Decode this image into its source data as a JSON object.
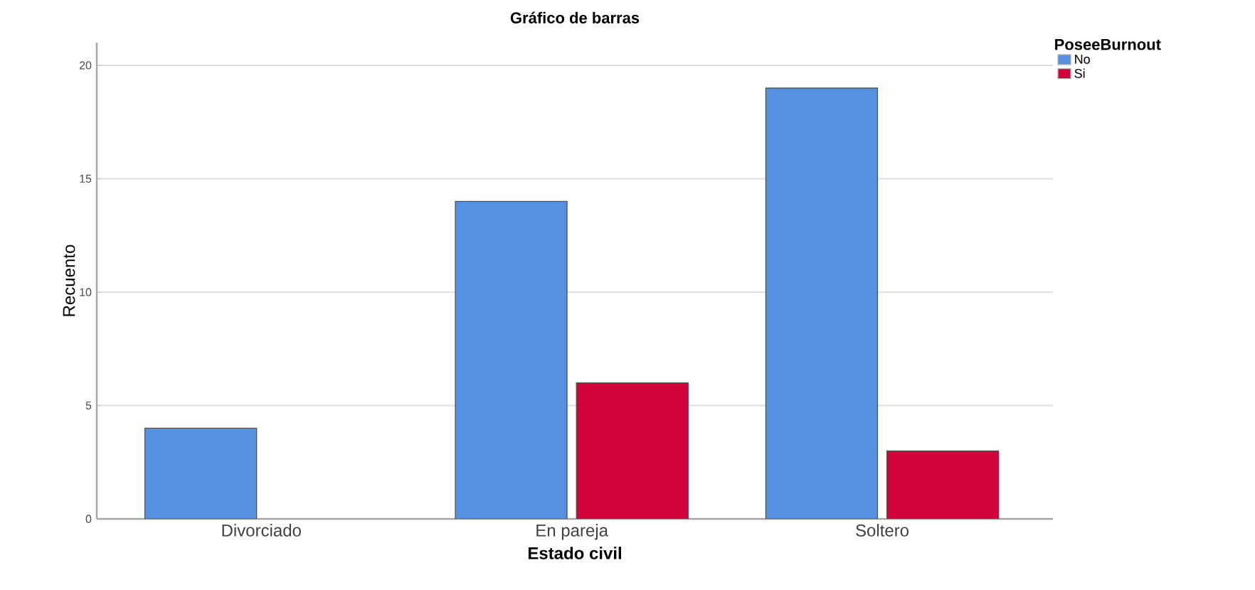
{
  "chart_data": {
    "type": "bar",
    "title": "Gráfico de barras",
    "xlabel": "Estado civil",
    "ylabel": "Recuento",
    "legend_title": "PoseeBurnout",
    "categories": [
      "Divorciado",
      "En pareja",
      "Soltero"
    ],
    "series": [
      {
        "name": "No",
        "color": "#5591e0",
        "values": [
          4,
          14,
          19
        ]
      },
      {
        "name": "Si",
        "color": "#d0033a",
        "values": [
          null,
          6,
          3
        ]
      }
    ],
    "ylim": [
      0,
      21
    ],
    "yticks": [
      0,
      5,
      10,
      15,
      20
    ],
    "grid": "y",
    "legend": "top right"
  }
}
